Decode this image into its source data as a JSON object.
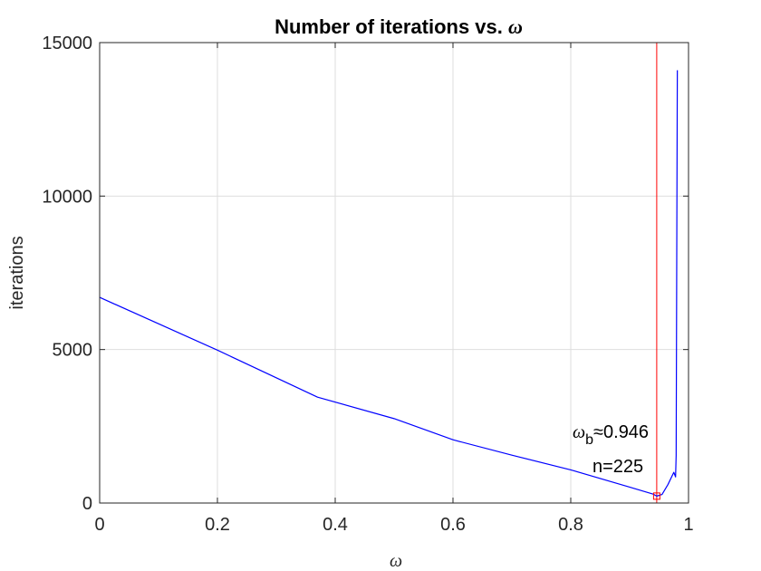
{
  "chart_data": {
    "type": "line",
    "title": "Number of iterations vs. ",
    "title_symbol": "ω",
    "xlabel": "ω",
    "ylabel": "iterations",
    "xlim": [
      0,
      1
    ],
    "ylim": [
      0,
      15000
    ],
    "grid": true,
    "xticks": [
      0,
      0.2,
      0.4,
      0.6,
      0.8,
      1
    ],
    "xtick_labels": [
      "0",
      "0.2",
      "0.4",
      "0.6",
      "0.8",
      "1"
    ],
    "yticks": [
      0,
      5000,
      10000,
      15000
    ],
    "ytick_labels": [
      "0",
      "5000",
      "10000",
      "15000"
    ],
    "series": [
      {
        "name": "iterations",
        "color": "#0000ff",
        "x": [
          0,
          0.2,
          0.37,
          0.5,
          0.6,
          0.7,
          0.8,
          0.9,
          0.94,
          0.946,
          0.955,
          0.965,
          0.975,
          0.978,
          0.979,
          0.98,
          0.981
        ],
        "y": [
          6700,
          4980,
          3450,
          2750,
          2060,
          1560,
          1080,
          520,
          290,
          225,
          280,
          600,
          1000,
          850,
          1550,
          8000,
          14100
        ]
      }
    ],
    "optimum": {
      "x": 0.946,
      "y": 225,
      "line_color": "#ff0000",
      "label_symbol": "ω",
      "label_subscript": "b",
      "label_value": "≈0.946",
      "label_count": "n=225"
    }
  }
}
